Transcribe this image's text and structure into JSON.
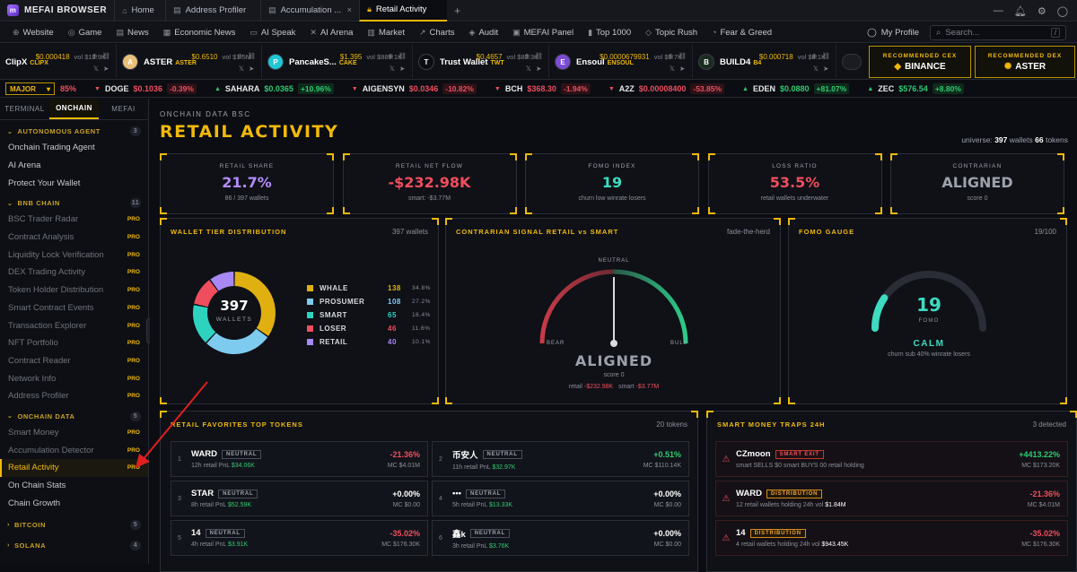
{
  "browser": {
    "name": "MEFAI BROWSER",
    "tabs": [
      {
        "label": "Home",
        "icon": "home-icon"
      },
      {
        "label": "Address Profiler",
        "icon": "file-icon"
      },
      {
        "label": "Accumulation ...",
        "icon": "file-icon"
      },
      {
        "label": "Retail Activity",
        "icon": "lock-icon",
        "active": true
      }
    ],
    "new_tab": "+"
  },
  "nav": {
    "items": [
      "Website",
      "Game",
      "News",
      "Economic News",
      "AI Speak",
      "AI Arena",
      "Market",
      "Charts",
      "Audit",
      "MEFAI Panel",
      "Top 1000",
      "Topic Rush",
      "Fear & Greed"
    ],
    "profile": "My Profile",
    "search_placeholder": "Search...",
    "search_kbd": "/"
  },
  "tokens": [
    {
      "name": "ClipX",
      "sym": "CLIPX",
      "price": "$0.000418",
      "vol": "vol $12.9K",
      "color": "#3b3f48"
    },
    {
      "name": "ASTER",
      "sym": "ASTER",
      "price": "$0.6510",
      "vol": "vol $1.5M",
      "color": "#e8c07a"
    },
    {
      "name": "PancakeS...",
      "sym": "CAKE",
      "price": "$1.395",
      "vol": "vol $889.1K",
      "color": "#1fc7d4"
    },
    {
      "name": "Trust Wallet",
      "sym": "TWT",
      "price": "$0.4657",
      "vol": "vol $82.3K",
      "color": "#0b0d12"
    },
    {
      "name": "Ensoul",
      "sym": "ENSOUL",
      "price": "$0.0000679931",
      "vol": "vol $5.7K",
      "color": "#7b4bd6"
    },
    {
      "name": "BUILD4",
      "sym": "B4",
      "price": "$0.000718",
      "vol": "vol $8.1K",
      "color": "#1b2b1f"
    }
  ],
  "recommended": [
    {
      "label": "RECOMMENDED CEX",
      "name": "BINANCE"
    },
    {
      "label": "RECOMMENDED DEX",
      "name": "ASTER"
    }
  ],
  "ticker": {
    "selector": "MAJOR",
    "items": [
      {
        "sym": "",
        "price": "",
        "change": "85%",
        "dir": "dn"
      },
      {
        "sym": "DOGE",
        "price": "$0.1036",
        "change": "-0.39%",
        "dir": "dn"
      },
      {
        "sym": "SAHARA",
        "price": "$0.0365",
        "change": "+10.96%",
        "dir": "up"
      },
      {
        "sym": "AIGENSYN",
        "price": "$0.0346",
        "change": "-10.82%",
        "dir": "dn"
      },
      {
        "sym": "BCH",
        "price": "$368.30",
        "change": "-1.94%",
        "dir": "dn"
      },
      {
        "sym": "A2Z",
        "price": "$0.00008400",
        "change": "-53.85%",
        "dir": "dn"
      },
      {
        "sym": "EDEN",
        "price": "$0.0880",
        "change": "+81.07%",
        "dir": "up"
      },
      {
        "sym": "ZEC",
        "price": "$576.54",
        "change": "+8.80%",
        "dir": "up"
      }
    ]
  },
  "sidebar": {
    "tabs": [
      "TERMINAL",
      "ONCHAIN",
      "MEFAI"
    ],
    "sections": [
      {
        "title": "AUTONOMOUS AGENT",
        "count": "3",
        "items": [
          {
            "label": "Onchain Trading Agent"
          },
          {
            "label": "AI Arena"
          },
          {
            "label": "Protect Your Wallet"
          }
        ]
      },
      {
        "title": "BNB CHAIN",
        "count": "11",
        "items": [
          {
            "label": "BSC Trader Radar",
            "pro": "PRO"
          },
          {
            "label": "Contract Analysis",
            "pro": "PRO"
          },
          {
            "label": "Liquidity Lock Verification",
            "pro": "PRO"
          },
          {
            "label": "DEX Trading Activity",
            "pro": "PRO"
          },
          {
            "label": "Token Holder Distribution",
            "pro": "PRO"
          },
          {
            "label": "Smart Contract Events",
            "pro": "PRO"
          },
          {
            "label": "Transaction Explorer",
            "pro": "PRO"
          },
          {
            "label": "NFT Portfolio",
            "pro": "PRO"
          },
          {
            "label": "Contract Reader",
            "pro": "PRO"
          },
          {
            "label": "Network Info",
            "pro": "PRO"
          },
          {
            "label": "Address Profiler",
            "pro": "PRO"
          }
        ]
      },
      {
        "title": "ONCHAIN DATA",
        "count": "5",
        "items": [
          {
            "label": "Smart Money",
            "pro": "PRO"
          },
          {
            "label": "Accumulation Detector",
            "pro": "PRO"
          },
          {
            "label": "Retail Activity",
            "pro": "PRO",
            "active": true
          },
          {
            "label": "On Chain Stats"
          },
          {
            "label": "Chain Growth"
          }
        ]
      },
      {
        "title": "BITCOIN",
        "count": "5",
        "items": []
      },
      {
        "title": "SOLANA",
        "count": "4",
        "items": []
      },
      {
        "title": "DEX BROWSER",
        "count": "",
        "items": []
      }
    ]
  },
  "page": {
    "kicker": "ONCHAIN DATA BSC",
    "title": "RETAIL ACTIVITY",
    "universe_label": "universe:",
    "universe_wallets": "397",
    "wallets_word": "wallets",
    "universe_tokens": "66",
    "tokens_word": "tokens"
  },
  "kpis": [
    {
      "label": "RETAIL SHARE",
      "value": "21.7%",
      "sub": "86 / 397 wallets",
      "color": "#b48cff"
    },
    {
      "label": "RETAIL NET FLOW",
      "value": "-$232.98K",
      "sub": "smart: -$3.77M",
      "color": "#f04e5e"
    },
    {
      "label": "FOMO INDEX",
      "value": "19",
      "sub": "churn low winrate losers",
      "color": "#3ddbc0"
    },
    {
      "label": "LOSS RATIO",
      "value": "53.5%",
      "sub": "retail wallets underwater",
      "color": "#f04e5e"
    },
    {
      "label": "CONTRARIAN",
      "value": "ALIGNED",
      "sub": "score 0",
      "color": "#9da1ab"
    }
  ],
  "tier": {
    "title": "WALLET TIER DISTRIBUTION",
    "right": "397 wallets",
    "center_value": "397",
    "center_label": "WALLETS",
    "chart_data": {
      "type": "pie",
      "categories": [
        "WHALE",
        "PROSUMER",
        "SMART",
        "LOSER",
        "RETAIL"
      ],
      "values": [
        138,
        108,
        65,
        46,
        40
      ],
      "percents": [
        "34.8%",
        "27.2%",
        "16.4%",
        "11.6%",
        "10.1%"
      ],
      "colors": [
        "#e0b010",
        "#7ecbf0",
        "#2ed3c0",
        "#f04e5e",
        "#a888f5"
      ]
    }
  },
  "contrarian": {
    "title": "CONTRARIAN SIGNAL RETAIL vs SMART",
    "right": "fade-the-herd",
    "neutral": "NEUTRAL",
    "bear": "BEAR",
    "bull": "BULL",
    "status": "ALIGNED",
    "score": "score 0",
    "retail_label": "retail",
    "retail_value": "-$232.98K",
    "smart_label": "smart",
    "smart_value": "-$3.77M",
    "needle": 0
  },
  "fomo": {
    "title": "FOMO GAUGE",
    "right": "19/100",
    "value": "19",
    "label": "FOMO",
    "level": 19,
    "status": "CALM",
    "desc": "churn sub 40% winrate losers"
  },
  "favorites": {
    "title": "RETAIL FAVORITES TOP TOKENS",
    "right": "20 tokens",
    "rows": [
      {
        "rank": "1",
        "name": "WARD",
        "badge": "NEUTRAL",
        "sub": "12h retail PnL",
        "pnl": "$34.06K",
        "pct": "-21.36%",
        "dir": "dn",
        "mc": "MC $4.01M"
      },
      {
        "rank": "2",
        "name": "币安人",
        "badge": "NEUTRAL",
        "sub": "11h retail PnL",
        "pnl": "$32.97K",
        "pct": "+0.51%",
        "dir": "up",
        "mc": "MC $110.14K"
      },
      {
        "rank": "3",
        "name": "STAR",
        "badge": "NEUTRAL",
        "sub": "8h retail PnL",
        "pnl": "$52.59K",
        "pct": "+0.00%",
        "dir": "flat",
        "mc": "MC $0.00"
      },
      {
        "rank": "4",
        "name": "•••",
        "badge": "NEUTRAL",
        "sub": "5h retail PnL",
        "pnl": "$13.33K",
        "pct": "+0.00%",
        "dir": "flat",
        "mc": "MC $0.00"
      },
      {
        "rank": "5",
        "name": "14",
        "badge": "NEUTRAL",
        "sub": "4h retail PnL",
        "pnl": "$3.91K",
        "pct": "-35.02%",
        "dir": "dn",
        "mc": "MC $176.30K"
      },
      {
        "rank": "6",
        "name": "鑫k",
        "badge": "NEUTRAL",
        "sub": "3h retail PnL",
        "pnl": "$3.76K",
        "pct": "+0.00%",
        "dir": "flat",
        "mc": "MC $0.00"
      }
    ]
  },
  "traps": {
    "title": "SMART MONEY TRAPS 24H",
    "right": "3 detected",
    "rows": [
      {
        "name": "CZmoon",
        "badge": "SMART EXIT",
        "btype": "red",
        "sub": "smart SELLS $0 smart BUYS 00 retail holding",
        "pct": "+4413.22%",
        "dir": "up",
        "mc": "MC $173.20K"
      },
      {
        "name": "WARD",
        "badge": "DISTRIBUTION",
        "btype": "org",
        "sub": "12 retail wallets holding 24h vol",
        "vol": "$1.84M",
        "pct": "-21.36%",
        "dir": "dn",
        "mc": "MC $4.01M"
      },
      {
        "name": "14",
        "badge": "DISTRIBUTION",
        "btype": "org",
        "sub": "4 retail wallets holding 24h vol",
        "vol": "$943.45K",
        "pct": "-35.02%",
        "dir": "dn",
        "mc": "MC $176.30K"
      }
    ]
  }
}
